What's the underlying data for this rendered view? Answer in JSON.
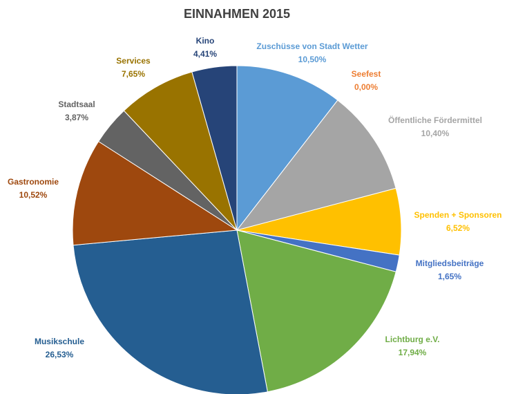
{
  "chart_data": {
    "type": "pie",
    "title": "EINNAHMEN 2015",
    "categories": [
      "Zuschüsse von Stadt Wetter",
      "Seefest",
      "Öffentliche Fördermittel",
      "Spenden + Sponsoren",
      "Mitgliedsbeiträge",
      "Lichtburg e.V.",
      "Musikschule",
      "Gastronomie",
      "Stadtsaal",
      "Services",
      "Kino"
    ],
    "values": [
      10.5,
      0.0,
      10.4,
      6.52,
      1.65,
      17.94,
      26.53,
      10.52,
      3.87,
      7.65,
      4.41
    ],
    "value_labels": [
      "10,50%",
      "0,00%",
      "10,40%",
      "6,52%",
      "1,65%",
      "17,94%",
      "26,53%",
      "10,52%",
      "3,87%",
      "7,65%",
      "4,41%"
    ],
    "colors": [
      "#5b9bd5",
      "#ed7d31",
      "#a5a5a5",
      "#ffc000",
      "#4472c4",
      "#70ad47",
      "#255e91",
      "#9e480e",
      "#636363",
      "#997300",
      "#264478"
    ]
  }
}
